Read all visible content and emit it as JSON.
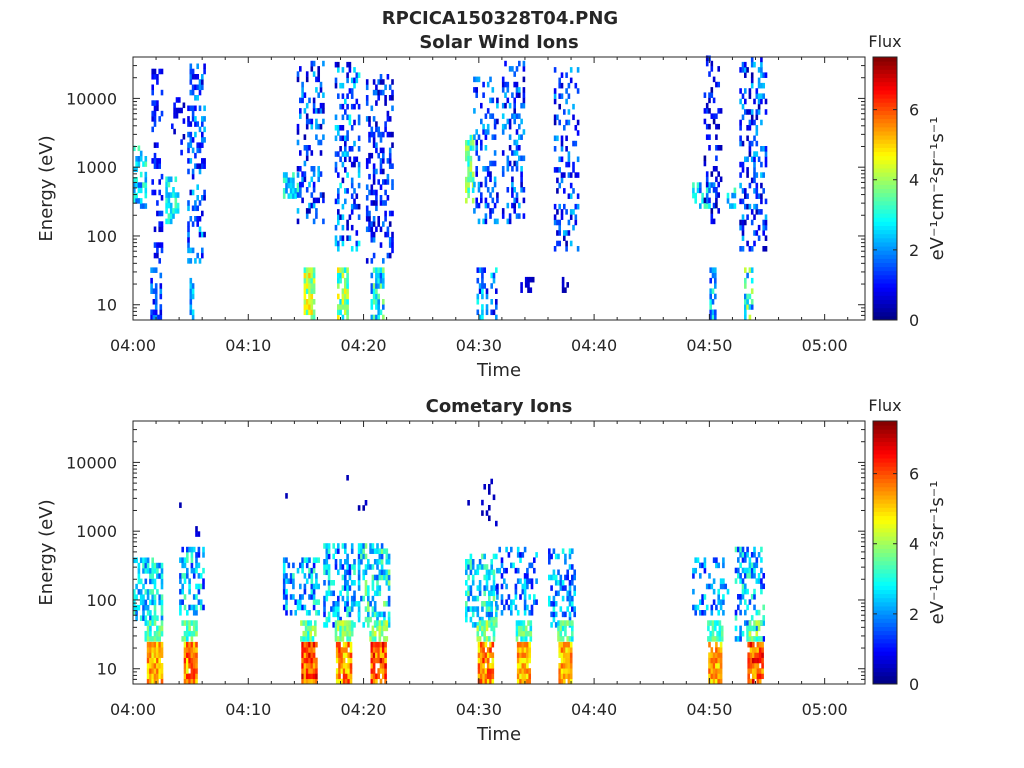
{
  "figure": {
    "title": "RPCICA150328T04.PNG"
  },
  "chart_data": [
    {
      "type": "heatmap",
      "title": "Solar Wind Ions",
      "xlabel": "Time",
      "ylabel": "Energy (eV)",
      "x_ticks": [
        "04:00",
        "04:10",
        "04:20",
        "04:30",
        "04:40",
        "04:50",
        "05:00"
      ],
      "x_range_minutes": [
        0,
        63.5
      ],
      "y_scale": "log",
      "y_range_eV": [
        6,
        40000
      ],
      "y_ticks": [
        10,
        100,
        1000,
        10000
      ],
      "y_tick_labels": [
        "10",
        "100",
        "1000",
        "10000"
      ],
      "colorbar": {
        "title": "Flux",
        "label": "eV⁻¹cm⁻²sr⁻¹s⁻¹",
        "range": [
          0,
          7.5
        ],
        "ticks": [
          0,
          2,
          4,
          6
        ],
        "colormap": "jet"
      },
      "activity_intervals_minutes": [
        [
          0,
          6.5
        ],
        [
          13,
          22.5
        ],
        [
          28.8,
          38.6
        ],
        [
          48.5,
          54.9
        ]
      ],
      "clusters": [
        {
          "t": [
            0,
            1.2
          ],
          "e": [
            250,
            2000
          ],
          "v": [
            1.5,
            3.5
          ],
          "d": 0.5
        },
        {
          "t": [
            1.5,
            2.5
          ],
          "e": [
            6,
            30
          ],
          "v": [
            0.5,
            2.2
          ],
          "d": 0.6
        },
        {
          "t": [
            1.6,
            2.6
          ],
          "e": [
            40,
            25000
          ],
          "v": [
            0.5,
            1.5
          ],
          "d": 0.3
        },
        {
          "t": [
            2.8,
            4.0
          ],
          "e": [
            150,
            700
          ],
          "v": [
            2.0,
            3.5
          ],
          "d": 0.6
        },
        {
          "t": [
            3.3,
            4.5
          ],
          "e": [
            1500,
            12000
          ],
          "v": [
            0.3,
            1.2
          ],
          "d": 0.2
        },
        {
          "t": [
            4.7,
            6.3
          ],
          "e": [
            40,
            30000
          ],
          "v": [
            0.5,
            2.5
          ],
          "d": 0.35
        },
        {
          "t": [
            4.9,
            5.3
          ],
          "e": [
            6,
            25
          ],
          "v": [
            1.5,
            3.0
          ],
          "d": 0.6
        },
        {
          "t": [
            13.0,
            14.5
          ],
          "e": [
            350,
            800
          ],
          "v": [
            1.8,
            3.5
          ],
          "d": 0.6
        },
        {
          "t": [
            14.2,
            16.5
          ],
          "e": [
            150,
            35000
          ],
          "v": [
            0.3,
            2.5
          ],
          "d": 0.3
        },
        {
          "t": [
            14.8,
            15.6
          ],
          "e": [
            6,
            30
          ],
          "v": [
            3.0,
            5.2
          ],
          "d": 0.8
        },
        {
          "t": [
            17.5,
            19.5
          ],
          "e": [
            60,
            30000
          ],
          "v": [
            0.3,
            3.0
          ],
          "d": 0.35
        },
        {
          "t": [
            17.7,
            18.6
          ],
          "e": [
            6,
            30
          ],
          "v": [
            2.5,
            5.0
          ],
          "d": 0.8
        },
        {
          "t": [
            20.2,
            22.5
          ],
          "e": [
            40,
            20000
          ],
          "v": [
            0.3,
            2.0
          ],
          "d": 0.35
        },
        {
          "t": [
            20.6,
            21.6
          ],
          "e": [
            6,
            30
          ],
          "v": [
            1.5,
            4.0
          ],
          "d": 0.7
        },
        {
          "t": [
            28.8,
            29.5
          ],
          "e": [
            300,
            2500
          ],
          "v": [
            2.5,
            4.5
          ],
          "d": 0.6
        },
        {
          "t": [
            29.5,
            31.5
          ],
          "e": [
            150,
            20000
          ],
          "v": [
            0.5,
            2.5
          ],
          "d": 0.3
        },
        {
          "t": [
            29.8,
            31.5
          ],
          "e": [
            6,
            30
          ],
          "v": [
            0.5,
            3.0
          ],
          "d": 0.4
        },
        {
          "t": [
            32.0,
            34.0
          ],
          "e": [
            150,
            30000
          ],
          "v": [
            0.3,
            2.5
          ],
          "d": 0.35
        },
        {
          "t": [
            33.6,
            34.8
          ],
          "e": [
            15,
            25
          ],
          "v": [
            0.2,
            0.8
          ],
          "d": 0.7
        },
        {
          "t": [
            36.5,
            38.6
          ],
          "e": [
            60,
            25000
          ],
          "v": [
            0.3,
            2.5
          ],
          "d": 0.3
        },
        {
          "t": [
            37.2,
            37.8
          ],
          "e": [
            15,
            25
          ],
          "v": [
            0.2,
            0.7
          ],
          "d": 0.6
        },
        {
          "t": [
            48.5,
            50.5
          ],
          "e": [
            250,
            600
          ],
          "v": [
            1.5,
            3.5
          ],
          "d": 0.5
        },
        {
          "t": [
            49.5,
            51.0
          ],
          "e": [
            150,
            40000
          ],
          "v": [
            0.2,
            1.5
          ],
          "d": 0.25
        },
        {
          "t": [
            50.0,
            50.6
          ],
          "e": [
            6,
            30
          ],
          "v": [
            1.0,
            3.5
          ],
          "d": 0.6
        },
        {
          "t": [
            51.5,
            52.3
          ],
          "e": [
            250,
            500
          ],
          "v": [
            1.8,
            3.5
          ],
          "d": 0.5
        },
        {
          "t": [
            52.6,
            54.9
          ],
          "e": [
            60,
            35000
          ],
          "v": [
            0.3,
            2.5
          ],
          "d": 0.35
        },
        {
          "t": [
            53.0,
            53.7
          ],
          "e": [
            6,
            30
          ],
          "v": [
            1.5,
            4.5
          ],
          "d": 0.7
        }
      ]
    },
    {
      "type": "heatmap",
      "title": "Cometary Ions",
      "xlabel": "Time",
      "ylabel": "Energy (eV)",
      "x_ticks": [
        "04:00",
        "04:10",
        "04:20",
        "04:30",
        "04:40",
        "04:50",
        "05:00"
      ],
      "x_range_minutes": [
        0,
        63.5
      ],
      "y_scale": "log",
      "y_range_eV": [
        6,
        40000
      ],
      "y_ticks": [
        10,
        100,
        1000,
        10000
      ],
      "y_tick_labels": [
        "10",
        "100",
        "1000",
        "10000"
      ],
      "colorbar": {
        "title": "Flux",
        "label": "eV⁻¹cm⁻²sr⁻¹s⁻¹",
        "range": [
          0,
          7.5
        ],
        "ticks": [
          0,
          2,
          4,
          6
        ],
        "colormap": "jet"
      },
      "activity_intervals_minutes": [
        [
          0,
          6.5
        ],
        [
          13,
          22.5
        ],
        [
          28.8,
          38.6
        ],
        [
          48.5,
          54.9
        ]
      ],
      "clusters": [
        {
          "t": [
            0,
            2.5
          ],
          "e": [
            50,
            400
          ],
          "v": [
            1.5,
            3.5
          ],
          "d": 0.55
        },
        {
          "t": [
            1.0,
            2.6
          ],
          "e": [
            25,
            45
          ],
          "v": [
            2.5,
            4.0
          ],
          "d": 0.8
        },
        {
          "t": [
            1.2,
            2.6
          ],
          "e": [
            6,
            22
          ],
          "v": [
            4.5,
            6.0
          ],
          "d": 0.95
        },
        {
          "t": [
            4.0,
            6.2
          ],
          "e": [
            60,
            500
          ],
          "v": [
            1.0,
            3.5
          ],
          "d": 0.45
        },
        {
          "t": [
            4.2,
            5.6
          ],
          "e": [
            25,
            45
          ],
          "v": [
            2.5,
            4.0
          ],
          "d": 0.8
        },
        {
          "t": [
            4.4,
            5.6
          ],
          "e": [
            6,
            22
          ],
          "v": [
            4.5,
            6.5
          ],
          "d": 0.95
        },
        {
          "t": [
            13.0,
            16.0
          ],
          "e": [
            60,
            400
          ],
          "v": [
            1.0,
            3.5
          ],
          "d": 0.45
        },
        {
          "t": [
            14.5,
            15.8
          ],
          "e": [
            25,
            45
          ],
          "v": [
            2.5,
            4.5
          ],
          "d": 0.8
        },
        {
          "t": [
            14.6,
            15.9
          ],
          "e": [
            6,
            22
          ],
          "v": [
            5.0,
            7.0
          ],
          "d": 0.95
        },
        {
          "t": [
            16.5,
            19.5
          ],
          "e": [
            40,
            600
          ],
          "v": [
            1.0,
            3.5
          ],
          "d": 0.45
        },
        {
          "t": [
            17.5,
            19.0
          ],
          "e": [
            25,
            45
          ],
          "v": [
            3.0,
            4.5
          ],
          "d": 0.8
        },
        {
          "t": [
            17.6,
            18.9
          ],
          "e": [
            6,
            22
          ],
          "v": [
            4.5,
            6.5
          ],
          "d": 0.95
        },
        {
          "t": [
            19.5,
            22.2
          ],
          "e": [
            40,
            600
          ],
          "v": [
            1.5,
            4.0
          ],
          "d": 0.5
        },
        {
          "t": [
            20.5,
            21.9
          ],
          "e": [
            25,
            45
          ],
          "v": [
            3.0,
            4.5
          ],
          "d": 0.8
        },
        {
          "t": [
            20.6,
            21.9
          ],
          "e": [
            6,
            22
          ],
          "v": [
            5.0,
            7.0
          ],
          "d": 0.95
        },
        {
          "t": [
            28.8,
            31.5
          ],
          "e": [
            40,
            400
          ],
          "v": [
            1.5,
            3.8
          ],
          "d": 0.45
        },
        {
          "t": [
            29.8,
            31.2
          ],
          "e": [
            25,
            45
          ],
          "v": [
            3.0,
            4.5
          ],
          "d": 0.8
        },
        {
          "t": [
            29.9,
            31.2
          ],
          "e": [
            6,
            22
          ],
          "v": [
            4.5,
            6.5
          ],
          "d": 0.95
        },
        {
          "t": [
            31.5,
            35.0
          ],
          "e": [
            60,
            500
          ],
          "v": [
            0.8,
            3.0
          ],
          "d": 0.35
        },
        {
          "t": [
            33.2,
            34.6
          ],
          "e": [
            25,
            45
          ],
          "v": [
            2.5,
            4.0
          ],
          "d": 0.8
        },
        {
          "t": [
            33.3,
            34.5
          ],
          "e": [
            6,
            22
          ],
          "v": [
            4.5,
            6.0
          ],
          "d": 0.95
        },
        {
          "t": [
            36.0,
            38.4
          ],
          "e": [
            40,
            500
          ],
          "v": [
            1.0,
            3.0
          ],
          "d": 0.4
        },
        {
          "t": [
            36.8,
            38.2
          ],
          "e": [
            25,
            45
          ],
          "v": [
            2.5,
            4.0
          ],
          "d": 0.8
        },
        {
          "t": [
            36.9,
            38.1
          ],
          "e": [
            6,
            22
          ],
          "v": [
            4.5,
            6.0
          ],
          "d": 0.95
        },
        {
          "t": [
            48.5,
            52.0
          ],
          "e": [
            60,
            400
          ],
          "v": [
            1.0,
            3.0
          ],
          "d": 0.3
        },
        {
          "t": [
            49.8,
            51.2
          ],
          "e": [
            25,
            45
          ],
          "v": [
            2.5,
            4.0
          ],
          "d": 0.8
        },
        {
          "t": [
            49.9,
            51.1
          ],
          "e": [
            6,
            22
          ],
          "v": [
            4.5,
            6.0
          ],
          "d": 0.95
        },
        {
          "t": [
            52.2,
            54.8
          ],
          "e": [
            25,
            500
          ],
          "v": [
            1.0,
            3.5
          ],
          "d": 0.45
        },
        {
          "t": [
            53.2,
            54.6
          ],
          "e": [
            25,
            45
          ],
          "v": [
            3.0,
            4.5
          ],
          "d": 0.8
        },
        {
          "t": [
            53.3,
            54.6
          ],
          "e": [
            6,
            22
          ],
          "v": [
            5.0,
            7.0
          ],
          "d": 0.95
        },
        {
          "t": [
            13.2,
            13.4
          ],
          "e": [
            3000,
            3500
          ],
          "v": [
            0.3,
            0.6
          ],
          "d": 0.6
        },
        {
          "t": [
            18.5,
            18.7
          ],
          "e": [
            5500,
            6500
          ],
          "v": [
            0.3,
            0.6
          ],
          "d": 0.6
        },
        {
          "t": [
            19.5,
            20.2
          ],
          "e": [
            2000,
            2600
          ],
          "v": [
            0.3,
            0.6
          ],
          "d": 0.5
        },
        {
          "t": [
            28.8,
            29.3
          ],
          "e": [
            2000,
            2600
          ],
          "v": [
            0.3,
            0.6
          ],
          "d": 0.5
        },
        {
          "t": [
            4.0,
            4.3
          ],
          "e": [
            2200,
            2600
          ],
          "v": [
            0.3,
            0.6
          ],
          "d": 0.5
        },
        {
          "t": [
            5.2,
            5.8
          ],
          "e": [
            700,
            1000
          ],
          "v": [
            0.3,
            0.8
          ],
          "d": 0.4
        },
        {
          "t": [
            30.0,
            31.5
          ],
          "e": [
            700,
            6000
          ],
          "v": [
            0.3,
            0.6
          ],
          "d": 0.1
        }
      ]
    }
  ]
}
